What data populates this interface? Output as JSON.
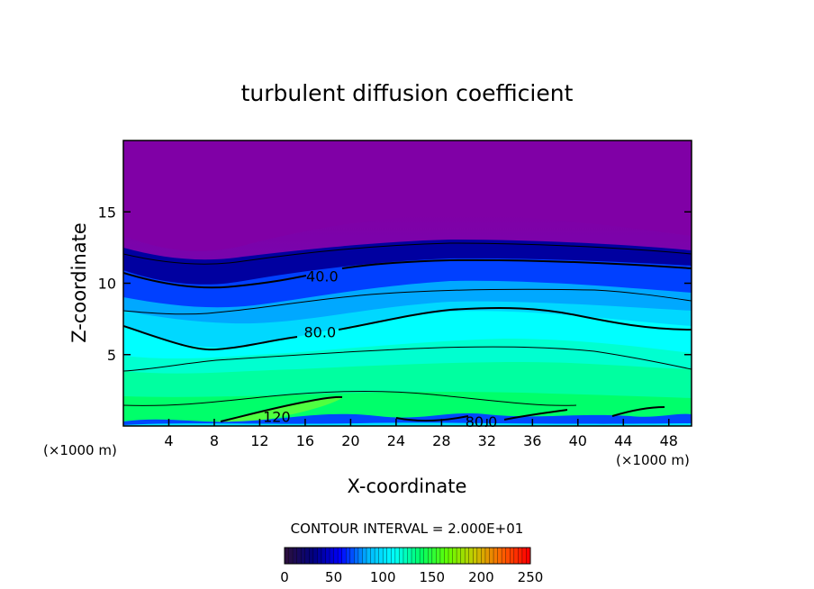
{
  "chart_data": {
    "type": "contour",
    "title": "turbulent diffusion coefficient",
    "xlabel": "X-coordinate",
    "ylabel": "Z-coordinate",
    "x_unit": "(×1000 m)",
    "y_unit": "(×1000 m)",
    "xlim": [
      0,
      50
    ],
    "ylim": [
      0,
      20
    ],
    "x_ticks": [
      4,
      8,
      12,
      16,
      20,
      24,
      28,
      32,
      36,
      40,
      44,
      48
    ],
    "y_ticks": [
      5,
      10,
      15
    ],
    "contour_interval_text": "CONTOUR INTERVAL = 2.000E+01",
    "contour_labels": [
      {
        "x": 17.5,
        "z": 10.5,
        "text": "40.0"
      },
      {
        "x": 17.3,
        "z": 6.6,
        "text": "80.0"
      },
      {
        "x": 13.5,
        "z": 0.65,
        "text": "120"
      },
      {
        "x": 31.5,
        "z": 0.3,
        "text": "80.0"
      }
    ],
    "colorbar": {
      "min": 0,
      "max": 250,
      "ticks": [
        0,
        50,
        100,
        150,
        200,
        250
      ],
      "colors": [
        "#2a0f3f",
        "#000080",
        "#0000ff",
        "#00b4ff",
        "#00ffff",
        "#00ff64",
        "#64ff00",
        "#c8c800",
        "#ff6400",
        "#ff0000"
      ]
    },
    "layers": [
      {
        "range": "0-20",
        "color": "#8000a6"
      },
      {
        "range": "20-40",
        "color": "#0000a0"
      },
      {
        "range": "40-60",
        "color": "#0040ff"
      },
      {
        "range": "60-80",
        "color": "#00c8ff"
      },
      {
        "range": "80-100",
        "color": "#00ffe0"
      },
      {
        "range": "100-120",
        "color": "#00ff90"
      },
      {
        "range": "120-140",
        "color": "#50ff40"
      }
    ]
  }
}
